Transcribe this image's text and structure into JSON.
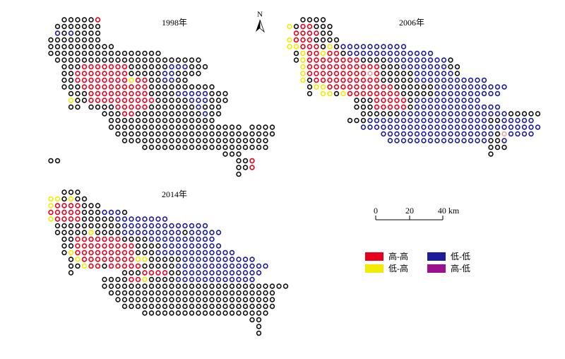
{
  "panels": [
    {
      "title": "1998年"
    },
    {
      "title": "2006年"
    },
    {
      "title": "2014年"
    }
  ],
  "north": "N",
  "scale_bar": {
    "labels": [
      "0",
      "20",
      "40 km"
    ]
  },
  "legend": [
    {
      "label": "高-高"
    },
    {
      "label": "低-高"
    },
    {
      "label": "低-低"
    },
    {
      "label": "高-低"
    }
  ]
}
